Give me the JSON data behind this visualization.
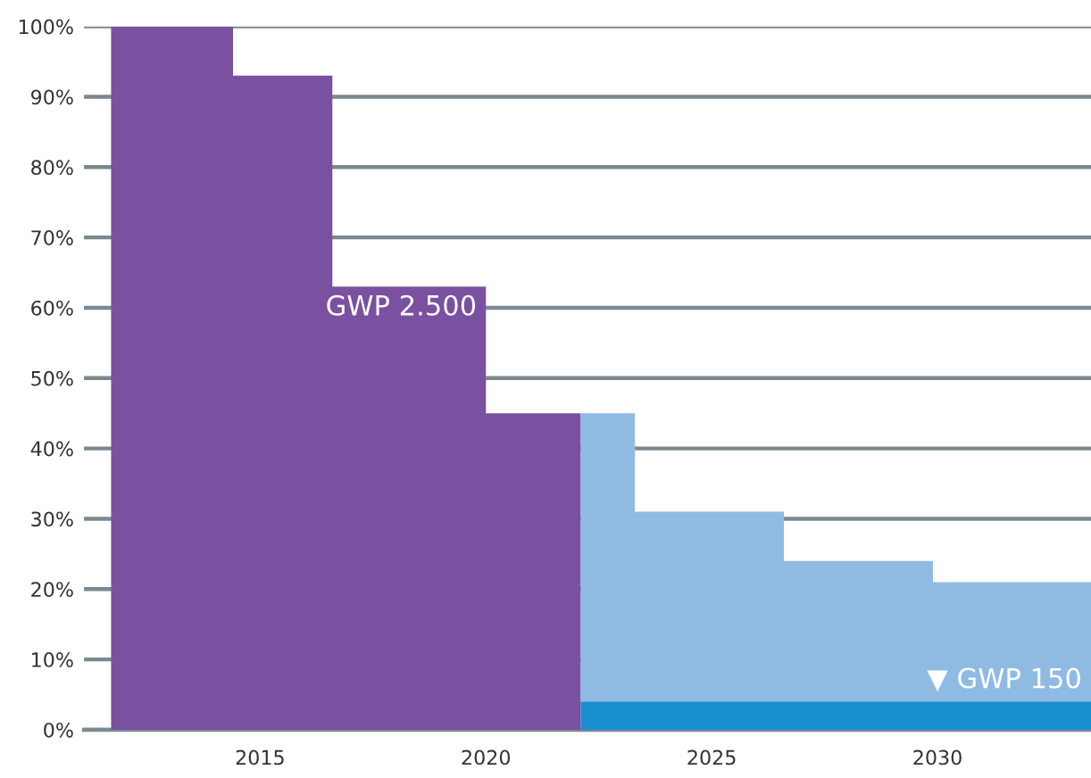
{
  "chart_data": {
    "type": "area",
    "series": [
      {
        "name": "GWP 2.500",
        "color": "#7a50a0",
        "x": [
          2011.7,
          2014.4,
          2016.6,
          2020.0,
          2022.1
        ],
        "values": [
          100,
          93,
          63,
          45,
          45
        ]
      },
      {
        "name": "▼ GWP 150",
        "color": "#8fbbe3",
        "x": [
          2022.1,
          2023.3,
          2026.6,
          2029.9,
          2033.4
        ],
        "values": [
          45,
          31,
          24,
          21,
          21
        ]
      },
      {
        "color": "#1a8fd0",
        "x": [
          2022.1,
          2023.3,
          2026.6,
          2029.9,
          2033.4
        ],
        "values": [
          4,
          4,
          4,
          4,
          4
        ]
      }
    ],
    "xlim": [
      2011.1,
      2033.4
    ],
    "xticks": [
      2015,
      2020,
      2025,
      2030
    ],
    "ylim": [
      0,
      100
    ],
    "yticks": [
      {
        "value": 0,
        "label": "0%"
      },
      {
        "value": 10,
        "label": "10%"
      },
      {
        "value": 20,
        "label": "20%"
      },
      {
        "value": 30,
        "label": "30%"
      },
      {
        "value": 40,
        "label": "40%"
      },
      {
        "value": 50,
        "label": "50%"
      },
      {
        "value": 60,
        "label": "60%"
      },
      {
        "value": 70,
        "label": "70%"
      },
      {
        "value": 80,
        "label": "80%"
      },
      {
        "value": 90,
        "label": "90%"
      },
      {
        "value": 100,
        "label": "100%"
      }
    ],
    "grid": "y"
  }
}
